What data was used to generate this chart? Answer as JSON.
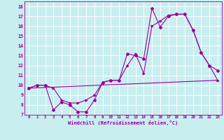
{
  "xlabel": "Windchill (Refroidissement éolien,°C)",
  "bg_color": "#c8eef0",
  "line_color": "#990099",
  "grid_color": "#ffffff",
  "xlim": [
    -0.5,
    23.5
  ],
  "ylim": [
    7,
    18.5
  ],
  "xticks": [
    0,
    1,
    2,
    3,
    4,
    5,
    6,
    7,
    8,
    9,
    10,
    11,
    12,
    13,
    14,
    15,
    16,
    17,
    18,
    19,
    20,
    21,
    22,
    23
  ],
  "yticks": [
    7,
    8,
    9,
    10,
    11,
    12,
    13,
    14,
    15,
    16,
    17,
    18
  ],
  "series1_x": [
    0,
    1,
    2,
    3,
    4,
    5,
    6,
    7,
    8,
    9,
    10,
    11,
    12,
    13,
    14,
    15,
    16,
    17,
    18,
    19,
    20,
    21,
    22,
    23
  ],
  "series1_y": [
    9.7,
    10.0,
    10.0,
    7.5,
    8.3,
    8.0,
    7.3,
    7.3,
    8.5,
    10.3,
    10.5,
    10.5,
    13.2,
    13.0,
    12.7,
    17.8,
    15.9,
    17.0,
    17.2,
    17.2,
    15.6,
    13.3,
    12.0,
    11.5
  ],
  "series2_x": [
    0,
    1,
    2,
    3,
    4,
    5,
    6,
    7,
    8,
    9,
    10,
    11,
    12,
    13,
    14,
    15,
    16,
    17,
    18,
    19,
    20,
    21,
    22,
    23
  ],
  "series2_y": [
    9.7,
    10.0,
    10.0,
    9.7,
    8.5,
    8.2,
    8.2,
    8.5,
    9.0,
    10.3,
    10.5,
    10.5,
    12.0,
    13.2,
    11.2,
    16.0,
    16.5,
    17.1,
    17.2,
    17.2,
    15.6,
    13.3,
    12.0,
    10.5
  ],
  "series3_x": [
    0,
    23
  ],
  "series3_y": [
    9.7,
    10.5
  ]
}
